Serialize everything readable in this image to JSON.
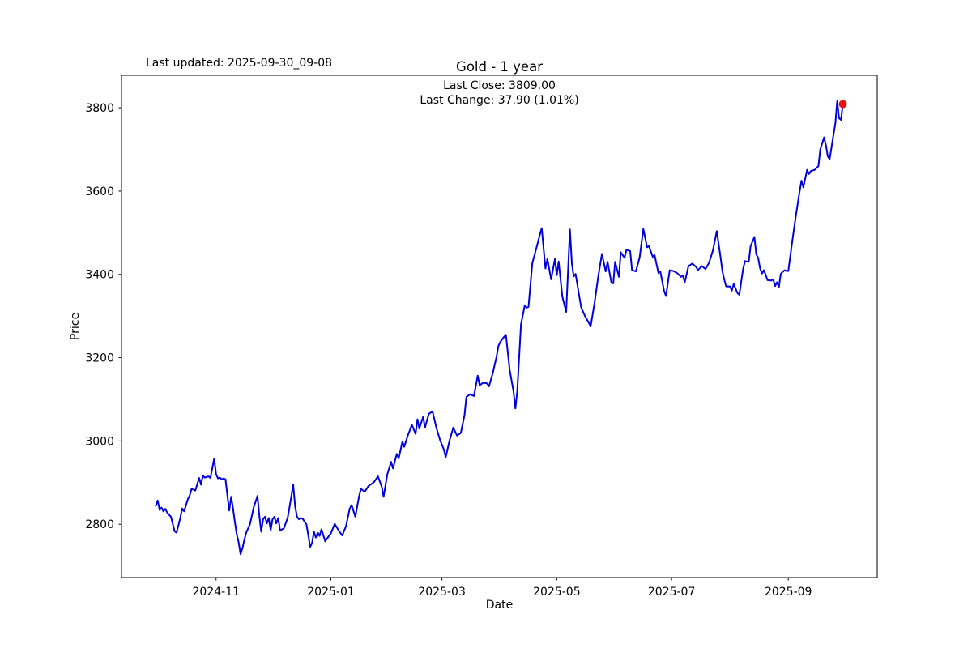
{
  "header": {
    "last_updated": "Last updated: 2025-09-30_09-08",
    "title": "Gold - 1 year",
    "subtitle_line1": "Last Close: 3809.00",
    "subtitle_line2": "Last Change: 37.90 (1.01%)"
  },
  "chart_data": {
    "type": "line",
    "title": "Gold - 1 year",
    "xlabel": "Date",
    "ylabel": "Price",
    "x_unit": "days since 2024-09-30",
    "xlim": [
      -18.25,
      383.25
    ],
    "ylim": [
      2672,
      3878
    ],
    "y_ticks": [
      2800,
      3000,
      3200,
      3400,
      3600,
      3800
    ],
    "x_ticks": [
      {
        "label": "2024-11",
        "day": 32
      },
      {
        "label": "2025-01",
        "day": 93
      },
      {
        "label": "2025-03",
        "day": 152
      },
      {
        "label": "2025-05",
        "day": 213
      },
      {
        "label": "2025-07",
        "day": 274
      },
      {
        "label": "2025-09",
        "day": 336
      }
    ],
    "grid": false,
    "legend": "none",
    "line_color": "#0000dd",
    "marker_color": "#ee1111",
    "last_close": 3809.0,
    "last_change_abs": 37.9,
    "last_change_pct": 1.01,
    "series": [
      {
        "name": "Gold",
        "points": [
          [
            0,
            2844
          ],
          [
            1,
            2857
          ],
          [
            2,
            2834
          ],
          [
            3,
            2840
          ],
          [
            4,
            2831
          ],
          [
            5,
            2837
          ],
          [
            6,
            2828
          ],
          [
            8,
            2818
          ],
          [
            10,
            2783
          ],
          [
            11,
            2780
          ],
          [
            13,
            2815
          ],
          [
            14,
            2838
          ],
          [
            15,
            2831
          ],
          [
            17,
            2860
          ],
          [
            18,
            2869
          ],
          [
            19,
            2885
          ],
          [
            21,
            2881
          ],
          [
            23,
            2911
          ],
          [
            24,
            2895
          ],
          [
            25,
            2917
          ],
          [
            26,
            2912
          ],
          [
            28,
            2915
          ],
          [
            29,
            2911
          ],
          [
            31,
            2958
          ],
          [
            32,
            2920
          ],
          [
            33,
            2910
          ],
          [
            34,
            2912
          ],
          [
            35,
            2908
          ],
          [
            36,
            2910
          ],
          [
            37,
            2908
          ],
          [
            38,
            2870
          ],
          [
            39,
            2833
          ],
          [
            40,
            2866
          ],
          [
            41,
            2838
          ],
          [
            42,
            2805
          ],
          [
            43,
            2776
          ],
          [
            44,
            2756
          ],
          [
            45,
            2728
          ],
          [
            46,
            2742
          ],
          [
            47,
            2762
          ],
          [
            48,
            2780
          ],
          [
            50,
            2800
          ],
          [
            52,
            2840
          ],
          [
            54,
            2868
          ],
          [
            55,
            2820
          ],
          [
            56,
            2782
          ],
          [
            57,
            2812
          ],
          [
            58,
            2818
          ],
          [
            59,
            2802
          ],
          [
            60,
            2815
          ],
          [
            61,
            2786
          ],
          [
            62,
            2812
          ],
          [
            63,
            2818
          ],
          [
            64,
            2802
          ],
          [
            65,
            2815
          ],
          [
            66,
            2785
          ],
          [
            68,
            2790
          ],
          [
            70,
            2815
          ],
          [
            71,
            2840
          ],
          [
            73,
            2895
          ],
          [
            74,
            2842
          ],
          [
            75,
            2818
          ],
          [
            76,
            2812
          ],
          [
            77,
            2815
          ],
          [
            78,
            2813
          ],
          [
            80,
            2800
          ],
          [
            82,
            2746
          ],
          [
            83,
            2755
          ],
          [
            84,
            2782
          ],
          [
            85,
            2768
          ],
          [
            86,
            2780
          ],
          [
            87,
            2772
          ],
          [
            88,
            2788
          ],
          [
            90,
            2759
          ],
          [
            91,
            2766
          ],
          [
            92,
            2772
          ],
          [
            93,
            2778
          ],
          [
            95,
            2801
          ],
          [
            97,
            2786
          ],
          [
            99,
            2773
          ],
          [
            101,
            2795
          ],
          [
            103,
            2838
          ],
          [
            104,
            2846
          ],
          [
            106,
            2818
          ],
          [
            108,
            2868
          ],
          [
            109,
            2885
          ],
          [
            111,
            2878
          ],
          [
            113,
            2892
          ],
          [
            115,
            2898
          ],
          [
            116,
            2902
          ],
          [
            118,
            2915
          ],
          [
            120,
            2890
          ],
          [
            121,
            2866
          ],
          [
            123,
            2920
          ],
          [
            125,
            2950
          ],
          [
            126,
            2934
          ],
          [
            128,
            2969
          ],
          [
            129,
            2958
          ],
          [
            131,
            2998
          ],
          [
            132,
            2986
          ],
          [
            134,
            3015
          ],
          [
            135,
            3026
          ],
          [
            136,
            3039
          ],
          [
            138,
            3017
          ],
          [
            139,
            3052
          ],
          [
            140,
            3030
          ],
          [
            142,
            3058
          ],
          [
            143,
            3032
          ],
          [
            145,
            3065
          ],
          [
            147,
            3071
          ],
          [
            149,
            3032
          ],
          [
            151,
            3002
          ],
          [
            153,
            2980
          ],
          [
            154,
            2961
          ],
          [
            156,
            3000
          ],
          [
            158,
            3032
          ],
          [
            160,
            3013
          ],
          [
            162,
            3019
          ],
          [
            164,
            3062
          ],
          [
            165,
            3106
          ],
          [
            167,
            3112
          ],
          [
            169,
            3108
          ],
          [
            171,
            3157
          ],
          [
            172,
            3134
          ],
          [
            174,
            3140
          ],
          [
            176,
            3138
          ],
          [
            177,
            3131
          ],
          [
            179,
            3163
          ],
          [
            181,
            3202
          ],
          [
            182,
            3228
          ],
          [
            183,
            3238
          ],
          [
            185,
            3250
          ],
          [
            186,
            3255
          ],
          [
            188,
            3170
          ],
          [
            190,
            3120
          ],
          [
            191,
            3078
          ],
          [
            192,
            3120
          ],
          [
            194,
            3280
          ],
          [
            196,
            3326
          ],
          [
            197,
            3320
          ],
          [
            198,
            3322
          ],
          [
            200,
            3427
          ],
          [
            202,
            3460
          ],
          [
            204,
            3495
          ],
          [
            205,
            3511
          ],
          [
            207,
            3414
          ],
          [
            208,
            3437
          ],
          [
            210,
            3388
          ],
          [
            212,
            3437
          ],
          [
            213,
            3398
          ],
          [
            214,
            3431
          ],
          [
            216,
            3346
          ],
          [
            218,
            3310
          ],
          [
            220,
            3508
          ],
          [
            221,
            3427
          ],
          [
            222,
            3395
          ],
          [
            223,
            3401
          ],
          [
            225,
            3346
          ],
          [
            226,
            3320
          ],
          [
            228,
            3300
          ],
          [
            230,
            3284
          ],
          [
            231,
            3275
          ],
          [
            233,
            3330
          ],
          [
            235,
            3394
          ],
          [
            237,
            3449
          ],
          [
            239,
            3407
          ],
          [
            240,
            3430
          ],
          [
            242,
            3380
          ],
          [
            243,
            3378
          ],
          [
            244,
            3430
          ],
          [
            246,
            3394
          ],
          [
            247,
            3453
          ],
          [
            249,
            3440
          ],
          [
            250,
            3459
          ],
          [
            252,
            3456
          ],
          [
            253,
            3410
          ],
          [
            255,
            3407
          ],
          [
            257,
            3440
          ],
          [
            259,
            3509
          ],
          [
            261,
            3465
          ],
          [
            262,
            3468
          ],
          [
            264,
            3442
          ],
          [
            265,
            3446
          ],
          [
            267,
            3403
          ],
          [
            268,
            3407
          ],
          [
            270,
            3361
          ],
          [
            271,
            3348
          ],
          [
            273,
            3410
          ],
          [
            275,
            3408
          ],
          [
            277,
            3403
          ],
          [
            279,
            3394
          ],
          [
            280,
            3397
          ],
          [
            281,
            3381
          ],
          [
            283,
            3420
          ],
          [
            285,
            3426
          ],
          [
            287,
            3418
          ],
          [
            288,
            3410
          ],
          [
            290,
            3420
          ],
          [
            292,
            3413
          ],
          [
            294,
            3429
          ],
          [
            296,
            3458
          ],
          [
            298,
            3504
          ],
          [
            300,
            3442
          ],
          [
            301,
            3407
          ],
          [
            302,
            3387
          ],
          [
            303,
            3371
          ],
          [
            305,
            3371
          ],
          [
            306,
            3361
          ],
          [
            307,
            3377
          ],
          [
            309,
            3355
          ],
          [
            310,
            3351
          ],
          [
            312,
            3413
          ],
          [
            313,
            3432
          ],
          [
            315,
            3430
          ],
          [
            316,
            3468
          ],
          [
            318,
            3490
          ],
          [
            319,
            3448
          ],
          [
            320,
            3440
          ],
          [
            321,
            3415
          ],
          [
            322,
            3402
          ],
          [
            323,
            3410
          ],
          [
            324,
            3399
          ],
          [
            325,
            3386
          ],
          [
            327,
            3385
          ],
          [
            328,
            3388
          ],
          [
            329,
            3372
          ],
          [
            330,
            3381
          ],
          [
            331,
            3369
          ],
          [
            332,
            3401
          ],
          [
            333,
            3406
          ],
          [
            334,
            3410
          ],
          [
            335,
            3408
          ],
          [
            336,
            3408
          ],
          [
            337,
            3441
          ],
          [
            338,
            3475
          ],
          [
            340,
            3540
          ],
          [
            342,
            3598
          ],
          [
            343,
            3625
          ],
          [
            344,
            3609
          ],
          [
            346,
            3651
          ],
          [
            347,
            3641
          ],
          [
            348,
            3648
          ],
          [
            350,
            3651
          ],
          [
            352,
            3660
          ],
          [
            353,
            3700
          ],
          [
            355,
            3729
          ],
          [
            356,
            3710
          ],
          [
            357,
            3683
          ],
          [
            358,
            3677
          ],
          [
            360,
            3735
          ],
          [
            361,
            3762
          ],
          [
            362,
            3816
          ],
          [
            363,
            3775
          ],
          [
            364,
            3771
          ],
          [
            365,
            3809
          ]
        ]
      }
    ]
  }
}
